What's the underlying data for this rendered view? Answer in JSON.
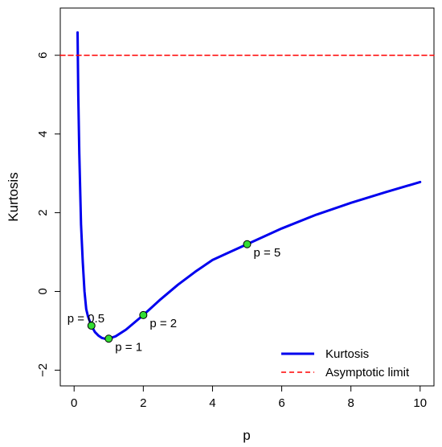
{
  "chart_data": {
    "type": "line",
    "title": "",
    "xlabel": "p",
    "ylabel": "Kurtosis",
    "xlim": [
      -0.4,
      10.4
    ],
    "ylim": [
      -2.4,
      7.2
    ],
    "xticks": [
      0,
      2,
      4,
      6,
      8,
      10
    ],
    "yticks": [
      -2,
      0,
      2,
      4,
      6
    ],
    "xtick_labels": [
      "0",
      "2",
      "4",
      "6",
      "8",
      "10"
    ],
    "ytick_labels": [
      "−2",
      "0",
      "2",
      "4",
      "6"
    ],
    "grid": false,
    "legend_position": "bottom-right",
    "series": [
      {
        "name": "Kurtosis",
        "color": "#0000ee",
        "style": "solid",
        "x": [
          0.1,
          0.12,
          0.15,
          0.2,
          0.25,
          0.3,
          0.35,
          0.4,
          0.5,
          0.6,
          0.7,
          0.8,
          0.9,
          1.0,
          1.2,
          1.5,
          2.0,
          2.5,
          3.0,
          3.5,
          4.0,
          4.5,
          5.0,
          6.0,
          7.0,
          8.0,
          9.0,
          10.0
        ],
        "y": [
          6.58,
          5.0,
          3.5,
          1.7,
          0.75,
          0.0,
          -0.45,
          -0.63,
          -0.87,
          -1.03,
          -1.12,
          -1.18,
          -1.205,
          -1.2,
          -1.14,
          -0.97,
          -0.6,
          -0.2,
          0.17,
          0.5,
          0.8,
          1.0,
          1.2,
          1.6,
          1.95,
          2.25,
          2.52,
          2.78
        ]
      },
      {
        "name": "Asymptotic limit",
        "color": "#ff0000",
        "style": "dashed",
        "x": [
          -0.4,
          10.4
        ],
        "y": [
          6,
          6
        ]
      }
    ],
    "points": [
      {
        "x": 0.5,
        "y": -0.87,
        "label": "p = 0.5",
        "label_pos": "top-left"
      },
      {
        "x": 1.0,
        "y": -1.2,
        "label": "p = 1",
        "label_pos": "bottom-right"
      },
      {
        "x": 2.0,
        "y": -0.6,
        "label": "p = 2",
        "label_pos": "bottom-right"
      },
      {
        "x": 5.0,
        "y": 1.2,
        "label": "p = 5",
        "label_pos": "bottom-right"
      }
    ],
    "point_color": "#33dd33",
    "legend": [
      {
        "label": "Kurtosis",
        "color": "#0000ee",
        "style": "solid"
      },
      {
        "label": "Asymptotic limit",
        "color": "#ff0000",
        "style": "dashed"
      }
    ]
  }
}
